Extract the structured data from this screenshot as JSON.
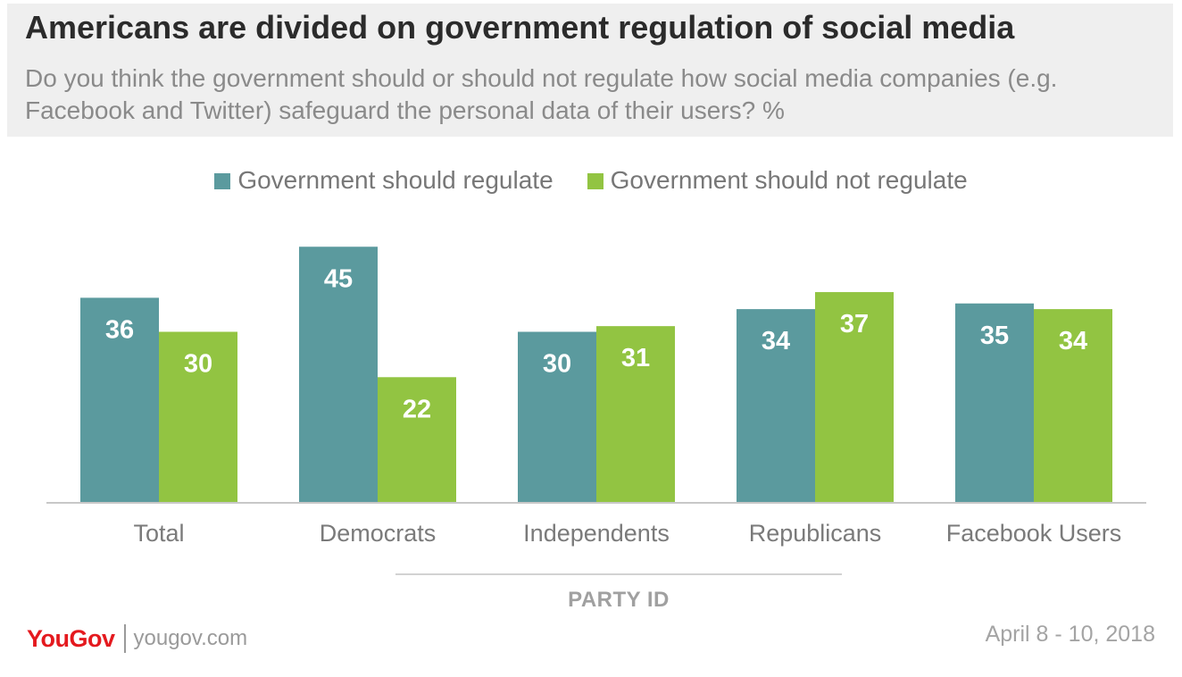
{
  "header": {
    "title": "Americans are divided on government regulation of social media",
    "subtitle": "Do you think the government should or should not regulate how social media companies (e.g. Facebook and Twitter) safeguard the personal data of their users? %"
  },
  "legend": {
    "items": [
      {
        "label": "Government should regulate",
        "color": "#5b9a9e"
      },
      {
        "label": "Government should not regulate",
        "color": "#92c442"
      }
    ]
  },
  "chart_data": {
    "type": "bar",
    "categories": [
      "Total",
      "Democrats",
      "Independents",
      "Republicans",
      "Facebook Users"
    ],
    "series": [
      {
        "name": "Government should regulate",
        "values": [
          36,
          45,
          30,
          34,
          35
        ],
        "color": "#5b9a9e"
      },
      {
        "name": "Government should not regulate",
        "values": [
          30,
          22,
          31,
          37,
          34
        ],
        "color": "#92c442"
      }
    ],
    "xlabel": "PARTY ID",
    "ylabel": "",
    "ylim": [
      0,
      45
    ],
    "grid": false,
    "legend_position": "top"
  },
  "footer": {
    "logo": "YouGov",
    "url": "yougov.com",
    "date": "April 8 - 10, 2018"
  }
}
